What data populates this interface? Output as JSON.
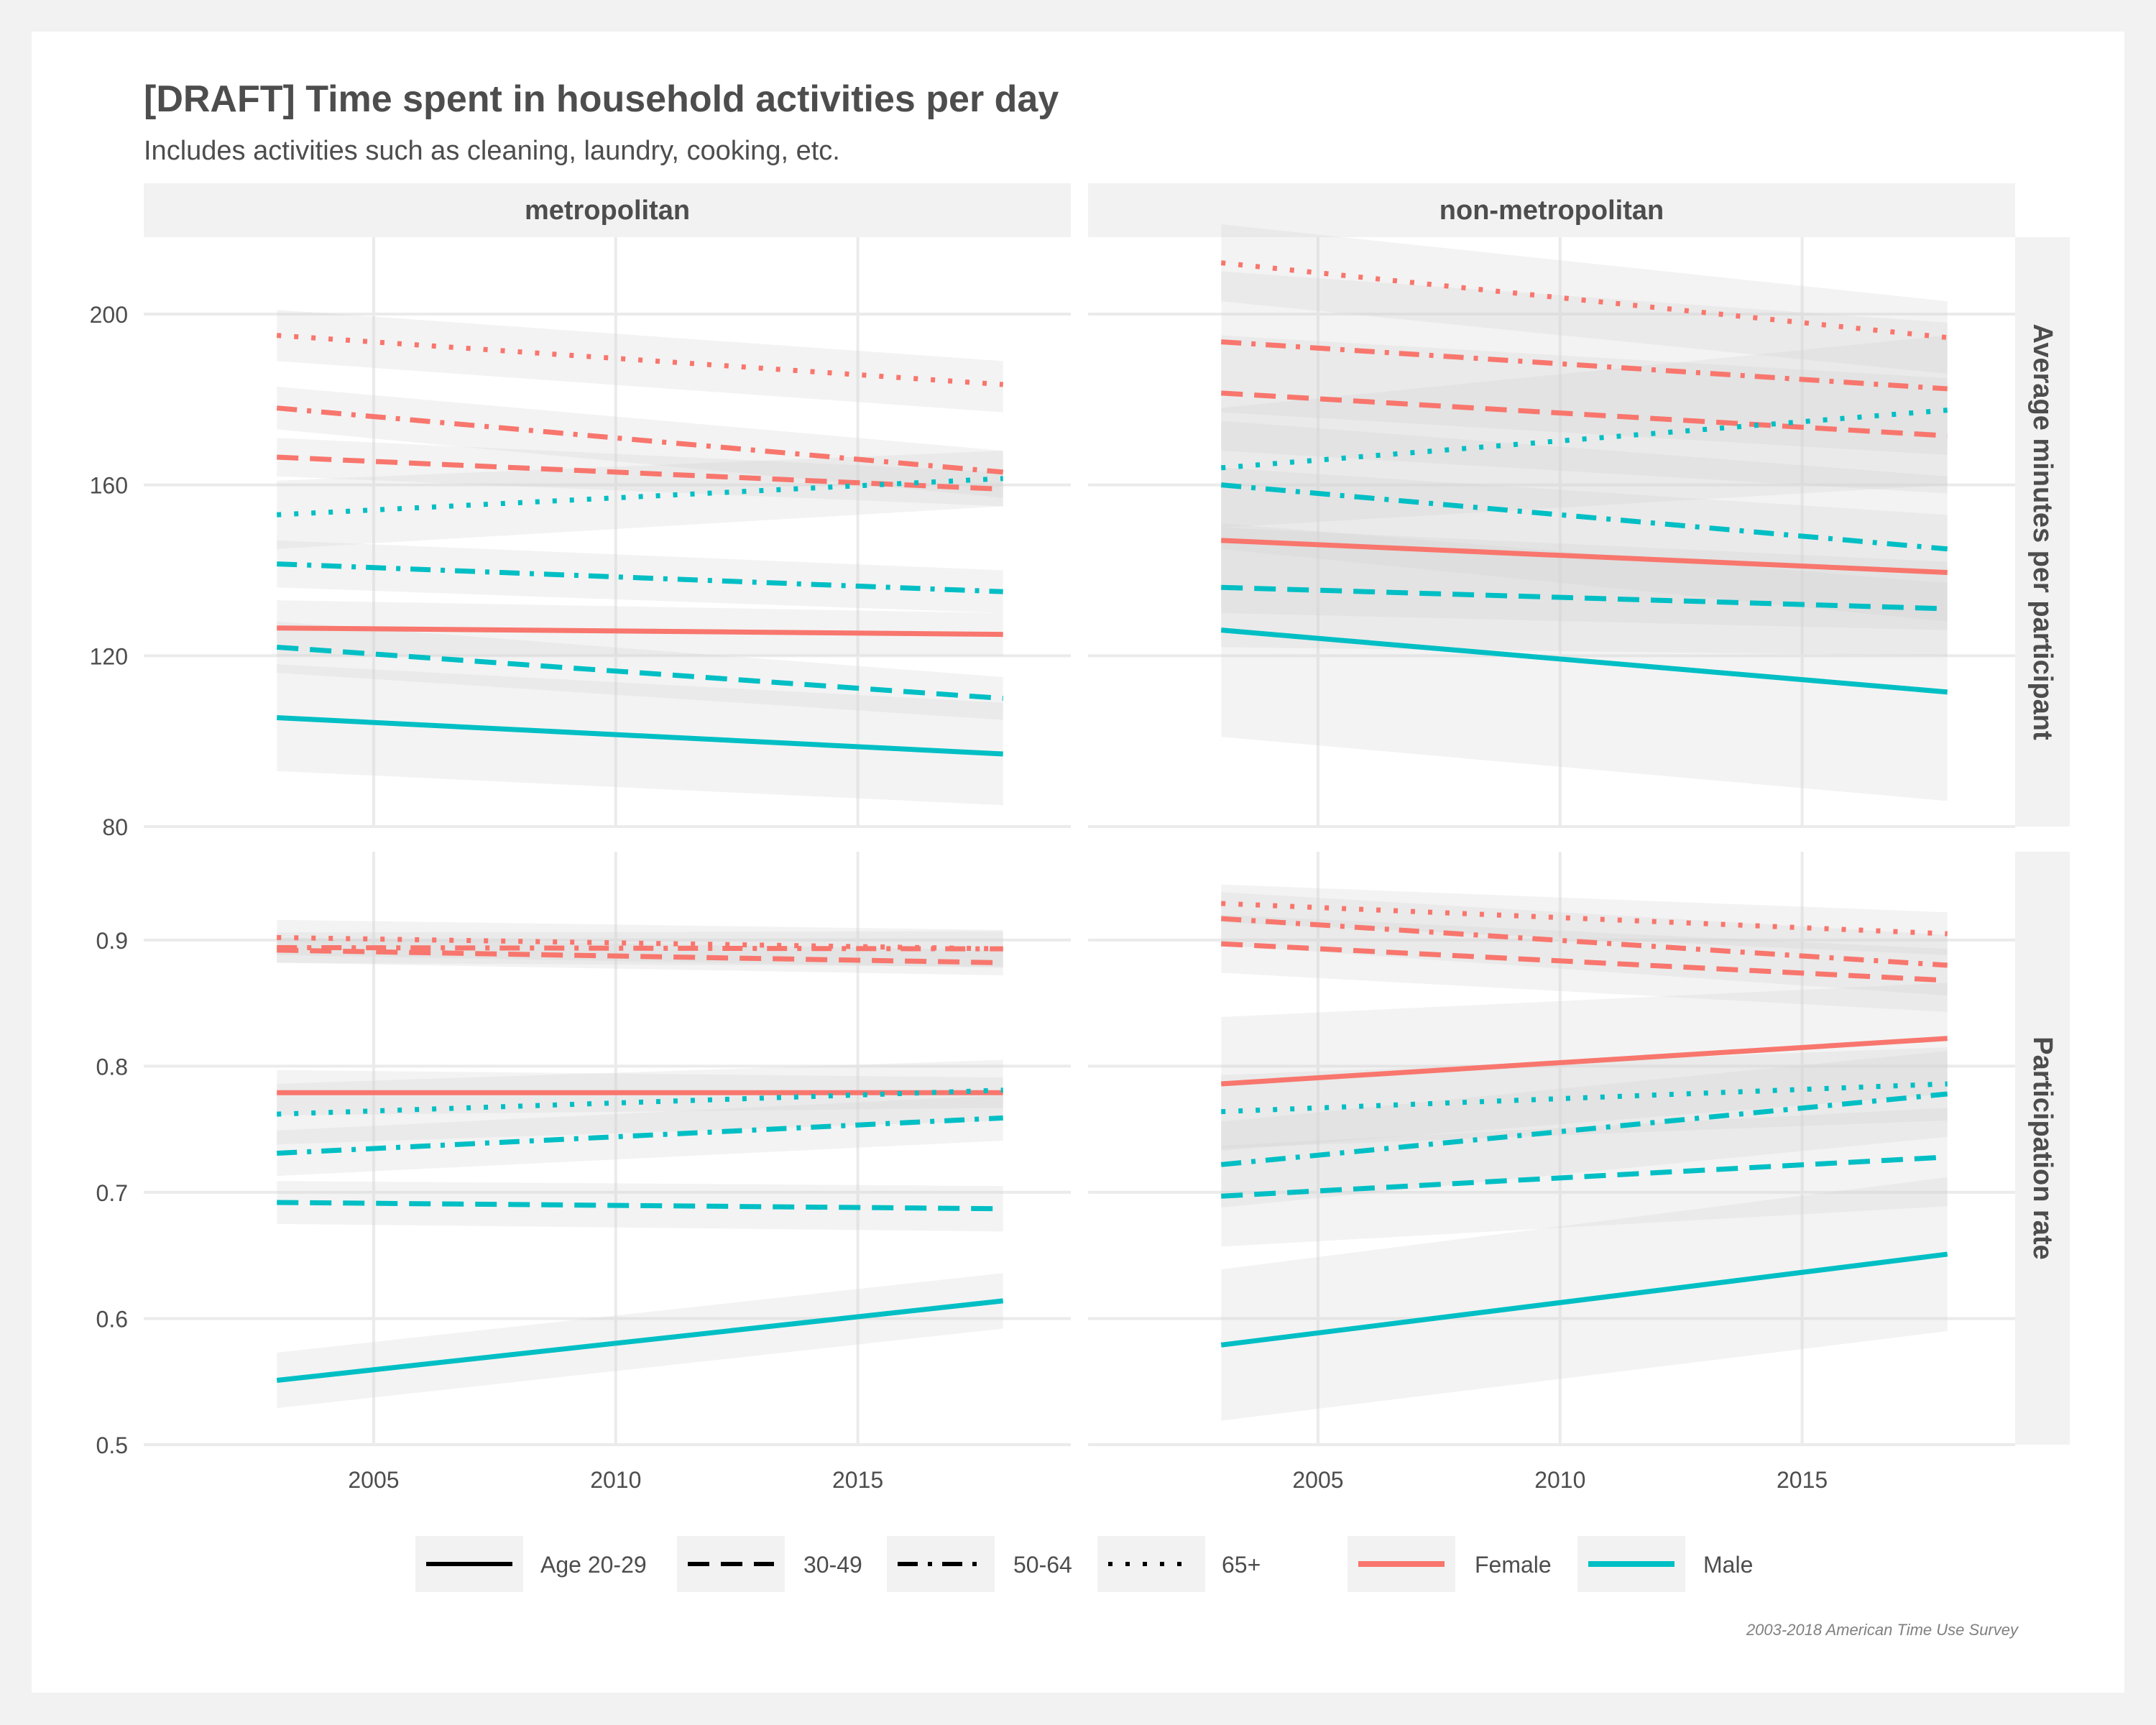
{
  "chart_data": {
    "type": "line",
    "title": "[DRAFT] Time spent in household activities per day",
    "subtitle": "Includes activities such as cleaning, laundry, cooking, etc.",
    "caption": "2003-2018 American Time Use Survey",
    "columns": [
      "metropolitan",
      "non-metropolitan"
    ],
    "rows": [
      "Average minutes per participant",
      "Participation rate"
    ],
    "x_range": [
      2003,
      2018
    ],
    "x_lim": [
      2000.25,
      2019.4
    ],
    "x_ticks": [
      "2005",
      "2010",
      "2015"
    ],
    "y_axes": [
      {
        "lim": [
          80,
          218
        ],
        "ticks": [
          "80",
          "120",
          "160",
          "200"
        ]
      },
      {
        "lim": [
          0.5,
          0.97
        ],
        "ticks": [
          "0.5",
          "0.6",
          "0.7",
          "0.8",
          "0.9"
        ]
      }
    ],
    "colors": {
      "Female": "#F8766D",
      "Male": "#00BFC4"
    },
    "ribbon_color": "#d0d0d0",
    "grid": true,
    "legend_position": "bottom",
    "legend": {
      "linetype": [
        {
          "label": "Age 20-29",
          "style": "solid"
        },
        {
          "label": "30-49",
          "style": "dashed"
        },
        {
          "label": "50-64",
          "style": "dashdot"
        },
        {
          "label": "65+",
          "style": "dotted"
        }
      ],
      "color": [
        {
          "label": "Female",
          "color": "#F8766D"
        },
        {
          "label": "Male",
          "color": "#00BFC4"
        }
      ]
    },
    "series": [
      {
        "column": "metropolitan",
        "row": "Average minutes per participant",
        "sex": "Female",
        "age": "Age 20-29",
        "x": [
          2003,
          2018
        ],
        "y": [
          126.5,
          125
        ],
        "ci_low": [
          120,
          120
        ],
        "ci_high": [
          133,
          130
        ]
      },
      {
        "column": "metropolitan",
        "row": "Average minutes per participant",
        "sex": "Female",
        "age": "30-49",
        "x": [
          2003,
          2018
        ],
        "y": [
          166.5,
          159
        ],
        "ci_low": [
          162,
          155
        ],
        "ci_high": [
          171,
          163
        ]
      },
      {
        "column": "metropolitan",
        "row": "Average minutes per participant",
        "sex": "Female",
        "age": "50-64",
        "x": [
          2003,
          2018
        ],
        "y": [
          178,
          163
        ],
        "ci_low": [
          173,
          157
        ],
        "ci_high": [
          183,
          168
        ]
      },
      {
        "column": "metropolitan",
        "row": "Average minutes per participant",
        "sex": "Female",
        "age": "65+",
        "x": [
          2003,
          2018
        ],
        "y": [
          195,
          183.5
        ],
        "ci_low": [
          189,
          177
        ],
        "ci_high": [
          201,
          189
        ]
      },
      {
        "column": "metropolitan",
        "row": "Average minutes per participant",
        "sex": "Male",
        "age": "Age 20-29",
        "x": [
          2003,
          2018
        ],
        "y": [
          105.5,
          97
        ],
        "ci_low": [
          93,
          85
        ],
        "ci_high": [
          118,
          109
        ]
      },
      {
        "column": "metropolitan",
        "row": "Average minutes per participant",
        "sex": "Male",
        "age": "30-49",
        "x": [
          2003,
          2018
        ],
        "y": [
          122,
          110
        ],
        "ci_low": [
          116,
          105
        ],
        "ci_high": [
          128,
          115
        ]
      },
      {
        "column": "metropolitan",
        "row": "Average minutes per participant",
        "sex": "Male",
        "age": "50-64",
        "x": [
          2003,
          2018
        ],
        "y": [
          141.5,
          135
        ],
        "ci_low": [
          136,
          130
        ],
        "ci_high": [
          147,
          140
        ]
      },
      {
        "column": "metropolitan",
        "row": "Average minutes per participant",
        "sex": "Male",
        "age": "65+",
        "x": [
          2003,
          2018
        ],
        "y": [
          153,
          161.5
        ],
        "ci_low": [
          145,
          155
        ],
        "ci_high": [
          161,
          168
        ]
      },
      {
        "column": "non-metropolitan",
        "row": "Average minutes per participant",
        "sex": "Female",
        "age": "Age 20-29",
        "x": [
          2003,
          2018
        ],
        "y": [
          147,
          139.5
        ],
        "ci_low": [
          130,
          126
        ],
        "ci_high": [
          164,
          153
        ]
      },
      {
        "column": "non-metropolitan",
        "row": "Average minutes per participant",
        "sex": "Female",
        "age": "30-49",
        "x": [
          2003,
          2018
        ],
        "y": [
          181.5,
          171.5
        ],
        "ci_low": [
          168,
          158
        ],
        "ci_high": [
          195,
          185
        ]
      },
      {
        "column": "non-metropolitan",
        "row": "Average minutes per participant",
        "sex": "Female",
        "age": "50-64",
        "x": [
          2003,
          2018
        ],
        "y": [
          193.5,
          182.5
        ],
        "ci_low": [
          177,
          167
        ],
        "ci_high": [
          210,
          198
        ]
      },
      {
        "column": "non-metropolitan",
        "row": "Average minutes per participant",
        "sex": "Female",
        "age": "65+",
        "x": [
          2003,
          2018
        ],
        "y": [
          212,
          194.5
        ],
        "ci_low": [
          203,
          186
        ],
        "ci_high": [
          221,
          203
        ]
      },
      {
        "column": "non-metropolitan",
        "row": "Average minutes per participant",
        "sex": "Male",
        "age": "Age 20-29",
        "x": [
          2003,
          2018
        ],
        "y": [
          126,
          111.5
        ],
        "ci_low": [
          101,
          86
        ],
        "ci_high": [
          151,
          137
        ]
      },
      {
        "column": "non-metropolitan",
        "row": "Average minutes per participant",
        "sex": "Male",
        "age": "30-49",
        "x": [
          2003,
          2018
        ],
        "y": [
          136,
          131
        ],
        "ci_low": [
          122,
          120
        ],
        "ci_high": [
          150,
          142
        ]
      },
      {
        "column": "non-metropolitan",
        "row": "Average minutes per participant",
        "sex": "Male",
        "age": "50-64",
        "x": [
          2003,
          2018
        ],
        "y": [
          160,
          145
        ],
        "ci_low": [
          145,
          128
        ],
        "ci_high": [
          175,
          162
        ]
      },
      {
        "column": "non-metropolitan",
        "row": "Average minutes per participant",
        "sex": "Male",
        "age": "65+",
        "x": [
          2003,
          2018
        ],
        "y": [
          164,
          177.5
        ],
        "ci_low": [
          150,
          160
        ],
        "ci_high": [
          178,
          195
        ]
      },
      {
        "column": "metropolitan",
        "row": "Participation rate",
        "sex": "Female",
        "age": "Age 20-29",
        "x": [
          2003,
          2018
        ],
        "y": [
          0.779,
          0.779
        ],
        "ci_low": [
          0.761,
          0.767
        ],
        "ci_high": [
          0.797,
          0.791
        ]
      },
      {
        "column": "metropolitan",
        "row": "Participation rate",
        "sex": "Female",
        "age": "30-49",
        "x": [
          2003,
          2018
        ],
        "y": [
          0.892,
          0.882
        ],
        "ci_low": [
          0.882,
          0.872
        ],
        "ci_high": [
          0.902,
          0.892
        ]
      },
      {
        "column": "metropolitan",
        "row": "Participation rate",
        "sex": "Female",
        "age": "50-64",
        "x": [
          2003,
          2018
        ],
        "y": [
          0.894,
          0.893
        ],
        "ci_low": [
          0.882,
          0.879
        ],
        "ci_high": [
          0.906,
          0.907
        ]
      },
      {
        "column": "metropolitan",
        "row": "Participation rate",
        "sex": "Female",
        "age": "65+",
        "x": [
          2003,
          2018
        ],
        "y": [
          0.902,
          0.893
        ],
        "ci_low": [
          0.888,
          0.878
        ],
        "ci_high": [
          0.916,
          0.908
        ]
      },
      {
        "column": "metropolitan",
        "row": "Participation rate",
        "sex": "Male",
        "age": "Age 20-29",
        "x": [
          2003,
          2018
        ],
        "y": [
          0.551,
          0.614
        ],
        "ci_low": [
          0.529,
          0.592
        ],
        "ci_high": [
          0.573,
          0.636
        ]
      },
      {
        "column": "metropolitan",
        "row": "Participation rate",
        "sex": "Male",
        "age": "30-49",
        "x": [
          2003,
          2018
        ],
        "y": [
          0.692,
          0.687
        ],
        "ci_low": [
          0.675,
          0.669
        ],
        "ci_high": [
          0.709,
          0.705
        ]
      },
      {
        "column": "metropolitan",
        "row": "Participation rate",
        "sex": "Male",
        "age": "50-64",
        "x": [
          2003,
          2018
        ],
        "y": [
          0.731,
          0.759
        ],
        "ci_low": [
          0.713,
          0.741
        ],
        "ci_high": [
          0.749,
          0.777
        ]
      },
      {
        "column": "metropolitan",
        "row": "Participation rate",
        "sex": "Male",
        "age": "65+",
        "x": [
          2003,
          2018
        ],
        "y": [
          0.762,
          0.781
        ],
        "ci_low": [
          0.738,
          0.757
        ],
        "ci_high": [
          0.786,
          0.805
        ]
      },
      {
        "column": "non-metropolitan",
        "row": "Participation rate",
        "sex": "Female",
        "age": "Age 20-29",
        "x": [
          2003,
          2018
        ],
        "y": [
          0.786,
          0.822
        ],
        "ci_low": [
          0.733,
          0.778
        ],
        "ci_high": [
          0.839,
          0.866
        ]
      },
      {
        "column": "non-metropolitan",
        "row": "Participation rate",
        "sex": "Female",
        "age": "30-49",
        "x": [
          2003,
          2018
        ],
        "y": [
          0.897,
          0.868
        ],
        "ci_low": [
          0.874,
          0.843
        ],
        "ci_high": [
          0.92,
          0.893
        ]
      },
      {
        "column": "non-metropolitan",
        "row": "Participation rate",
        "sex": "Female",
        "age": "50-64",
        "x": [
          2003,
          2018
        ],
        "y": [
          0.917,
          0.88
        ],
        "ci_low": [
          0.896,
          0.856
        ],
        "ci_high": [
          0.938,
          0.904
        ]
      },
      {
        "column": "non-metropolitan",
        "row": "Participation rate",
        "sex": "Female",
        "age": "65+",
        "x": [
          2003,
          2018
        ],
        "y": [
          0.929,
          0.905
        ],
        "ci_low": [
          0.914,
          0.888
        ],
        "ci_high": [
          0.944,
          0.922
        ]
      },
      {
        "column": "non-metropolitan",
        "row": "Participation rate",
        "sex": "Male",
        "age": "Age 20-29",
        "x": [
          2003,
          2018
        ],
        "y": [
          0.579,
          0.651
        ],
        "ci_low": [
          0.519,
          0.59
        ],
        "ci_high": [
          0.639,
          0.712
        ]
      },
      {
        "column": "non-metropolitan",
        "row": "Participation rate",
        "sex": "Male",
        "age": "30-49",
        "x": [
          2003,
          2018
        ],
        "y": [
          0.697,
          0.728
        ],
        "ci_low": [
          0.657,
          0.689
        ],
        "ci_high": [
          0.737,
          0.767
        ]
      },
      {
        "column": "non-metropolitan",
        "row": "Participation rate",
        "sex": "Male",
        "age": "50-64",
        "x": [
          2003,
          2018
        ],
        "y": [
          0.722,
          0.778
        ],
        "ci_low": [
          0.688,
          0.744
        ],
        "ci_high": [
          0.756,
          0.812
        ]
      },
      {
        "column": "non-metropolitan",
        "row": "Participation rate",
        "sex": "Male",
        "age": "65+",
        "x": [
          2003,
          2018
        ],
        "y": [
          0.764,
          0.786
        ],
        "ci_low": [
          0.735,
          0.757
        ],
        "ci_high": [
          0.793,
          0.815
        ]
      }
    ]
  }
}
